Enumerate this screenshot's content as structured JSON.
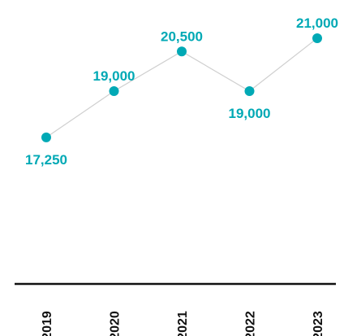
{
  "chart_data": {
    "type": "line",
    "categories": [
      "2019",
      "2020",
      "2021",
      "2022",
      "2023"
    ],
    "values": [
      17250,
      19000,
      20500,
      19000,
      21000
    ],
    "value_labels": [
      "17,250",
      "19,000",
      "20,500",
      "19,000",
      "21,000"
    ],
    "label_positions": [
      "below",
      "above",
      "above",
      "below",
      "above"
    ],
    "grid": false,
    "legend": "none",
    "x_tick_rotation": -90
  },
  "colors": {
    "marker": "#00a9b5",
    "label": "#00a9b5",
    "line": "#cfcfcf",
    "axis": "#111111",
    "tick_text": "#111111"
  }
}
